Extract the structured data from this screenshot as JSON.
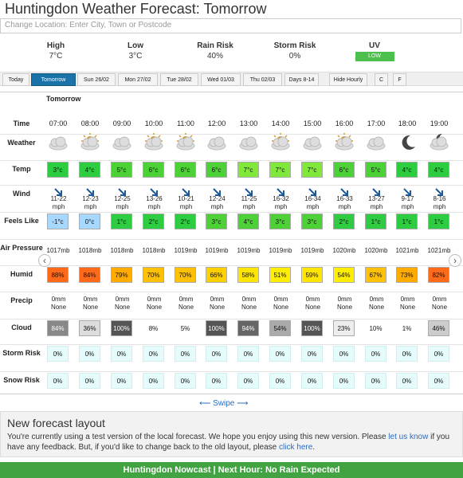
{
  "header": {
    "title": "Huntingdon Weather Forecast: Tomorrow"
  },
  "search": {
    "placeholder": "Change Location: Enter City, Town or Postcode"
  },
  "summary": [
    {
      "label": "High",
      "value": "7°C"
    },
    {
      "label": "Low",
      "value": "3°C"
    },
    {
      "label": "Rain Risk",
      "value": "40%"
    },
    {
      "label": "Storm Risk",
      "value": "0%"
    },
    {
      "label": "UV",
      "value": "LOW"
    }
  ],
  "tabs": [
    "Today",
    "Tomorrow",
    "Sun 26/02",
    "Mon 27/02",
    "Tue 28/02",
    "Wed 01/03",
    "Thu 02/03",
    "Days 8-14",
    "Hide Hourly",
    "C",
    "F"
  ],
  "forecast": {
    "day_label": "Tomorrow",
    "row_labels": {
      "time": "Time",
      "weather": "Weather",
      "temp": "Temp",
      "wind": "Wind",
      "feels": "Feels Like",
      "pressure": "Air Pressure",
      "humid": "Humid",
      "precip": "Precip",
      "cloud": "Cloud",
      "storm": "Storm Risk",
      "snow": "Snow Risk"
    },
    "times": [
      "07:00",
      "08:00",
      "09:00",
      "10:00",
      "11:00",
      "12:00",
      "13:00",
      "14:00",
      "15:00",
      "16:00",
      "17:00",
      "18:00",
      "19:00"
    ],
    "weather_icons": [
      "cloud-icon",
      "sun-cloud-icon",
      "cloud-icon",
      "sun-cloud-icon",
      "sun-cloud-icon",
      "cloud-icon",
      "cloud-icon",
      "sun-cloud-icon",
      "cloud-icon",
      "sun-cloud-icon",
      "cloud-icon",
      "moon-icon",
      "moon-cloud-icon"
    ],
    "temp": [
      "3°c",
      "4°c",
      "5°c",
      "6°c",
      "6°c",
      "6°c",
      "7°c",
      "7°c",
      "7°c",
      "6°c",
      "5°c",
      "4°c",
      "4°c"
    ],
    "temp_colors": [
      "#2ecc40",
      "#2ecc40",
      "#4cd137",
      "#4cd137",
      "#4cd137",
      "#4cd137",
      "#7fe83a",
      "#7fe83a",
      "#7fe83a",
      "#4cd137",
      "#4cd137",
      "#2ecc40",
      "#2ecc40"
    ],
    "wind_top": [
      "11-22",
      "12-23",
      "12-25",
      "13-26",
      "10-21",
      "12-24",
      "11-25",
      "16-32",
      "16-34",
      "16-33",
      "13-27",
      "9-17",
      "8-16"
    ],
    "wind_unit": "mph",
    "feels": [
      "-1°c",
      "0°c",
      "1°c",
      "2°c",
      "2°c",
      "3°c",
      "4°c",
      "3°c",
      "3°c",
      "2°c",
      "1°c",
      "1°c",
      "1°c"
    ],
    "feels_colors": [
      "#a8d8ff",
      "#a8d8ff",
      "#2ecc40",
      "#2ecc40",
      "#2ecc40",
      "#4cd137",
      "#4cd137",
      "#4cd137",
      "#4cd137",
      "#2ecc40",
      "#2ecc40",
      "#2ecc40",
      "#2ecc40"
    ],
    "pressure": [
      "1017mb",
      "1018mb",
      "1018mb",
      "1018mb",
      "1019mb",
      "1019mb",
      "1019mb",
      "1019mb",
      "1019mb",
      "1020mb",
      "1020mb",
      "1021mb",
      "1021mb"
    ],
    "humid": [
      "88%",
      "84%",
      "79%",
      "70%",
      "70%",
      "66%",
      "58%",
      "51%",
      "59%",
      "54%",
      "67%",
      "73%",
      "82%"
    ],
    "humid_colors": [
      "#ff6a1a",
      "#ff6a1a",
      "#ffab00",
      "#ffc107",
      "#ffc107",
      "#ffd000",
      "#ffe600",
      "#ffee00",
      "#ffe600",
      "#ffee00",
      "#ffc107",
      "#ffab00",
      "#ff6a1a"
    ],
    "precip_top": [
      "0mm",
      "0mm",
      "0mm",
      "0mm",
      "0mm",
      "0mm",
      "0mm",
      "0mm",
      "0mm",
      "0mm",
      "0mm",
      "0mm",
      "0mm"
    ],
    "precip_bottom": [
      "None",
      "None",
      "None",
      "None",
      "None",
      "None",
      "None",
      "None",
      "None",
      "None",
      "None",
      "None",
      "None"
    ],
    "cloud": [
      "84%",
      "36%",
      "100%",
      "8%",
      "5%",
      "100%",
      "94%",
      "54%",
      "100%",
      "23%",
      "10%",
      "1%",
      "46%"
    ],
    "cloud_colors": [
      "#888888",
      "#dddddd",
      "#555555",
      "#ffffff",
      "#ffffff",
      "#555555",
      "#666666",
      "#aaaaaa",
      "#555555",
      "#eeeeee",
      "#ffffff",
      "#ffffff",
      "#cccccc"
    ],
    "storm": [
      "0%",
      "0%",
      "0%",
      "0%",
      "0%",
      "0%",
      "0%",
      "0%",
      "0%",
      "0%",
      "0%",
      "0%",
      "0%"
    ],
    "snow": [
      "0%",
      "0%",
      "0%",
      "0%",
      "0%",
      "0%",
      "0%",
      "0%",
      "0%",
      "0%",
      "0%",
      "0%",
      "0%"
    ]
  },
  "swipe": "Swipe",
  "notice": {
    "title": "New forecast layout",
    "text1": "You're currently using a test version of the local forecast. We hope you enjoy using this new version. Please ",
    "link1": "let us know",
    "text2": " if you have any feedback. But, if you'd like to change back to the old layout, please ",
    "link2": "click here",
    "text3": "."
  },
  "nowcast": "Huntingdon Nowcast | Next Hour: No Rain Expected"
}
